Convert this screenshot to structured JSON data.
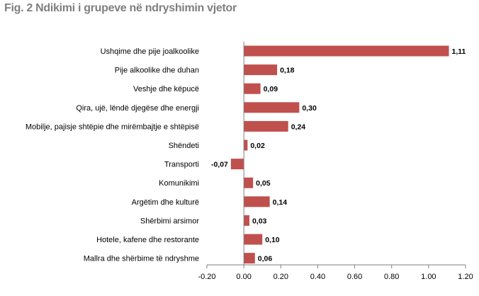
{
  "figure": {
    "title": "Fig. 2 Ndikimi i grupeve në ndryshimin vjetor"
  },
  "colors": {
    "bar": "#c0504d",
    "axis": "#7f7f7f",
    "title": "#7f7f7f"
  },
  "chart_data": {
    "type": "bar",
    "orientation": "horizontal",
    "title": "Fig. 2 Ndikimi i grupeve në ndryshimin vjetor",
    "categories": [
      "Ushqime dhe pije joalkoolike",
      "Pije alkoolike dhe duhan",
      "Veshje dhe këpucë",
      "Qira, ujë, lëndë djegëse dhe energji",
      "Mobilje, pajisje shtëpie dhe mirëmbajtje e shtëpisë",
      "Shëndeti",
      "Transporti",
      "Komunikimi",
      "Argëtim dhe kulturë",
      "Shërbimi arsimor",
      "Hotele, kafene dhe restorante",
      "Mallra dhe shërbime të ndryshme"
    ],
    "values": [
      1.11,
      0.18,
      0.09,
      0.3,
      0.24,
      0.02,
      -0.07,
      0.05,
      0.14,
      0.03,
      0.1,
      0.06
    ],
    "value_labels": [
      "1,11",
      "0,18",
      "0,09",
      "0,30",
      "0,24",
      "0,02",
      "-0,07",
      "0,05",
      "0,14",
      "0,03",
      "0,10",
      "0,06"
    ],
    "xlim": [
      -0.2,
      1.2
    ],
    "xticks": [
      -0.2,
      0.0,
      0.2,
      0.4,
      0.6,
      0.8,
      1.0,
      1.2
    ],
    "xtick_labels": [
      "-0.20",
      "0.00",
      "0.20",
      "0.40",
      "0.60",
      "0.80",
      "1.00",
      "1.20"
    ],
    "grid": false,
    "legend": "none"
  }
}
